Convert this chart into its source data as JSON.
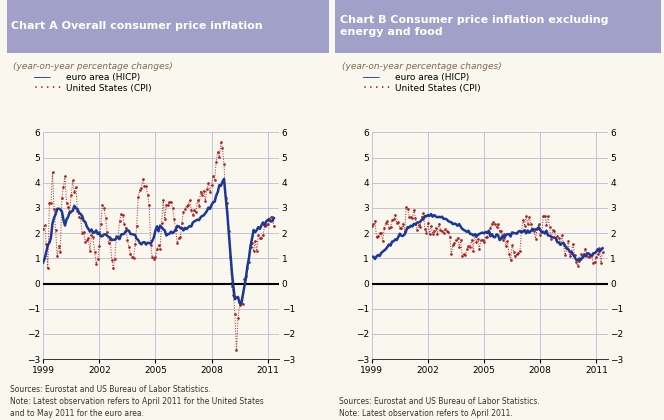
{
  "title_A": "Chart A Overall consumer price inflation",
  "title_B": "Chart B Consumer price inflation excluding\nenergy and food",
  "subtitle": "(year-on-year percentage changes)",
  "legend_euro": "euro area (HICP)",
  "legend_us": "United States (CPI)",
  "source_A": "Sources: Eurostat and US Bureau of Labor Statistics.\nNote: Latest observation refers to April 2011 for the United States\nand to May 2011 for the euro area.",
  "source_B": "Sources: Eurostat and US Bureau of Labor Statistics.\nNote: Latest observation refers to April 2011.",
  "ylim": [
    -3,
    6
  ],
  "yticks": [
    -3,
    -2,
    -1,
    0,
    1,
    2,
    3,
    4,
    5,
    6
  ],
  "xtick_years": [
    1999,
    2002,
    2005,
    2008,
    2011
  ],
  "bg_color": "#faf8ee",
  "header_color": "#a0a0c8",
  "title_text_color": "#ffffff",
  "grid_color": "#b0b0d0",
  "euro_color": "#1a3898",
  "us_color": "#aa2020",
  "subtitle_color": "#7a6a50"
}
